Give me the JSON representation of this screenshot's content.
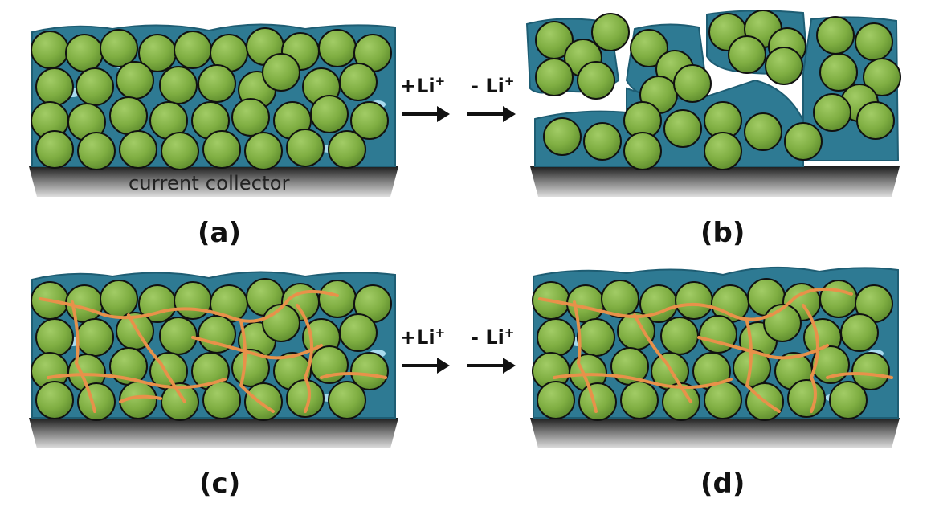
{
  "panels": [
    {
      "id": "a",
      "label": "(a)",
      "state": "pristine",
      "binder": true,
      "network": false
    },
    {
      "id": "b",
      "label": "(b)",
      "state": "after-cycling-cracked",
      "binder": true,
      "network": false
    },
    {
      "id": "c",
      "label": "(c)",
      "state": "pristine",
      "binder": true,
      "network": true
    },
    {
      "id": "d",
      "label": "(d)",
      "state": "after-cycling-intact",
      "binder": true,
      "network": true
    }
  ],
  "arrows": [
    {
      "lithiation": {
        "sign": "+Li",
        "sup": "+"
      },
      "delithiation": {
        "sign": "- Li",
        "sup": "+"
      }
    },
    {
      "lithiation": {
        "sign": "+Li",
        "sup": "+"
      },
      "delithiation": {
        "sign": "- Li",
        "sup": "+"
      }
    }
  ],
  "collector_label": "current collector",
  "colors": {
    "particle_fill": "#7fae42",
    "particle_stroke": "#111111",
    "binder": "#2e7a93",
    "binder_highlight": "#a9dbee",
    "network": "#e8914a",
    "collector_dark": "#222222"
  }
}
